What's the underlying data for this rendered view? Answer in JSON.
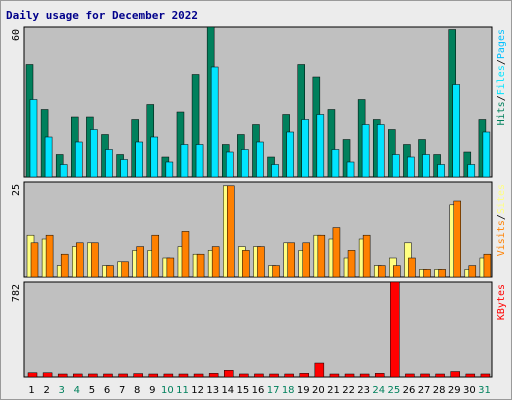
{
  "title": "Daily usage for December 2022",
  "colors": {
    "hits": "#00805c",
    "files": "#00e4ff",
    "pages": "#00c0ff",
    "visits": "#ff8000",
    "sites": "#ffff80",
    "kbytes": "#ff0000",
    "weekday_label": "#000000",
    "weekend_label": "#00805c",
    "plot_bg": "#c0c0c0"
  },
  "legends": {
    "top": [
      "Hits",
      "Files",
      "Pages"
    ],
    "middle": [
      "Visits",
      "Sites"
    ],
    "bottom": [
      "KBytes"
    ],
    "separator": "/"
  },
  "chart_data": [
    {
      "type": "bar",
      "title": "Daily usage for December 2022",
      "ymax_label": "60",
      "ylim": [
        0,
        60
      ],
      "categories": [
        "1",
        "2",
        "3",
        "4",
        "5",
        "6",
        "7",
        "8",
        "9",
        "10",
        "11",
        "12",
        "13",
        "14",
        "15",
        "16",
        "17",
        "18",
        "19",
        "20",
        "21",
        "22",
        "23",
        "24",
        "25",
        "26",
        "27",
        "28",
        "29",
        "30",
        "31"
      ],
      "series": [
        {
          "name": "Hits",
          "values": [
            45,
            27,
            9,
            24,
            24,
            17,
            9,
            23,
            29,
            8,
            26,
            41,
            60,
            13,
            17,
            21,
            8,
            25,
            45,
            40,
            27,
            15,
            31,
            23,
            19,
            13,
            15,
            9,
            59,
            10,
            23
          ]
        },
        {
          "name": "Files",
          "values": [
            31,
            16,
            5,
            14,
            19,
            11,
            7,
            14,
            16,
            6,
            13,
            13,
            44,
            10,
            11,
            14,
            5,
            18,
            23,
            25,
            11,
            6,
            21,
            21,
            9,
            8,
            9,
            5,
            37,
            5,
            18
          ]
        },
        {
          "name": "Pages",
          "values": [
            31,
            16,
            5,
            14,
            19,
            11,
            7,
            14,
            16,
            6,
            13,
            13,
            44,
            10,
            11,
            14,
            5,
            18,
            23,
            25,
            11,
            6,
            21,
            21,
            9,
            8,
            9,
            5,
            37,
            5,
            18
          ]
        }
      ]
    },
    {
      "type": "bar",
      "ymax_label": "25",
      "ylim": [
        0,
        25
      ],
      "categories": [
        "1",
        "2",
        "3",
        "4",
        "5",
        "6",
        "7",
        "8",
        "9",
        "10",
        "11",
        "12",
        "13",
        "14",
        "15",
        "16",
        "17",
        "18",
        "19",
        "20",
        "21",
        "22",
        "23",
        "24",
        "25",
        "26",
        "27",
        "28",
        "29",
        "30",
        "31"
      ],
      "series": [
        {
          "name": "Visits",
          "values": [
            9,
            11,
            6,
            9,
            9,
            3,
            4,
            8,
            11,
            5,
            12,
            6,
            8,
            24,
            7,
            8,
            3,
            9,
            9,
            11,
            13,
            7,
            11,
            3,
            3,
            5,
            2,
            2,
            20,
            3,
            6
          ]
        },
        {
          "name": "Sites",
          "values": [
            11,
            10,
            3,
            8,
            9,
            3,
            4,
            7,
            7,
            5,
            8,
            6,
            7,
            24,
            8,
            8,
            3,
            9,
            7,
            11,
            10,
            5,
            10,
            3,
            5,
            9,
            2,
            2,
            19,
            2,
            5
          ]
        }
      ]
    },
    {
      "type": "bar",
      "ymax_label": "782",
      "ylim": [
        0,
        782
      ],
      "categories": [
        "1",
        "2",
        "3",
        "4",
        "5",
        "6",
        "7",
        "8",
        "9",
        "10",
        "11",
        "12",
        "13",
        "14",
        "15",
        "16",
        "17",
        "18",
        "19",
        "20",
        "21",
        "22",
        "23",
        "24",
        "25",
        "26",
        "27",
        "28",
        "29",
        "30",
        "31"
      ],
      "series": [
        {
          "name": "KBytes",
          "values": [
            35,
            35,
            18,
            25,
            25,
            18,
            25,
            28,
            24,
            18,
            18,
            18,
            30,
            55,
            25,
            25,
            18,
            18,
            30,
            115,
            18,
            18,
            18,
            30,
            782,
            25,
            25,
            18,
            45,
            18,
            25
          ]
        }
      ]
    }
  ]
}
